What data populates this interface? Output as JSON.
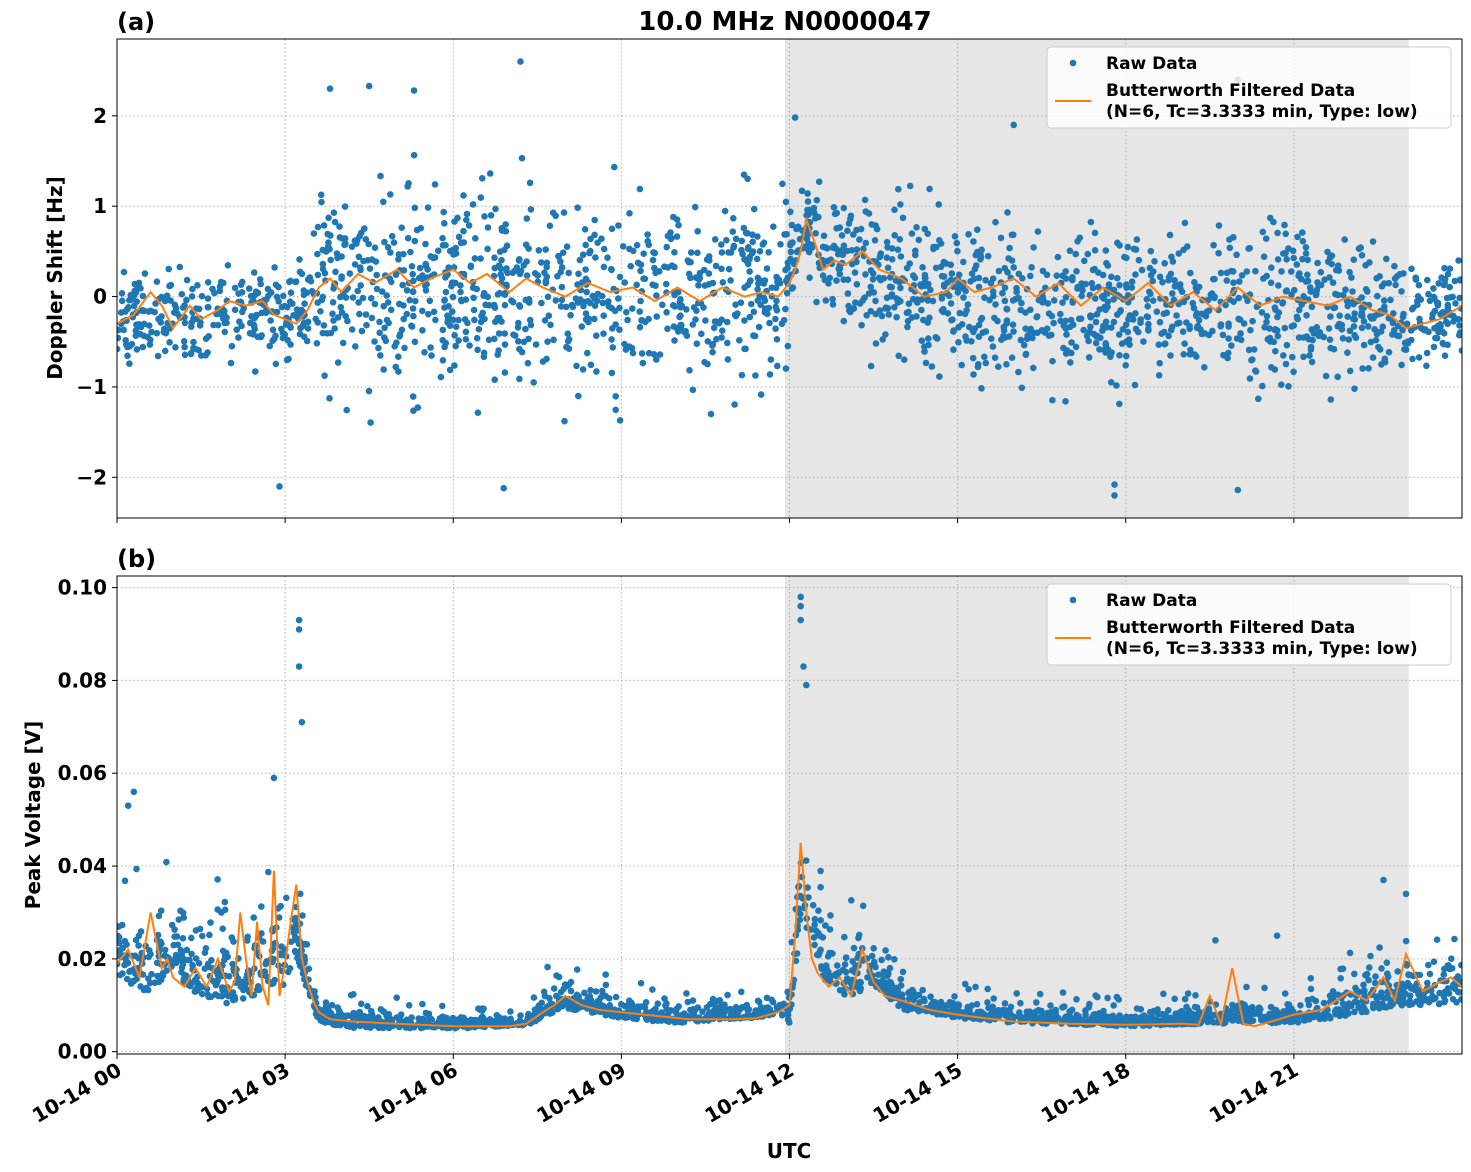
{
  "figure": {
    "title": "10.0 MHz N0000047",
    "xlabel": "UTC"
  },
  "colors": {
    "raw": "#1f77b4",
    "filtered": "#ff7f0e",
    "shade": "#e6e6e6"
  },
  "legend": {
    "raw_label": "Raw Data",
    "filtered_line1": "Butterworth Filtered Data",
    "filtered_line2": "(N=6, Tc=3.3333 min, Type: low)"
  },
  "chart_data": [
    {
      "panel": "(a)",
      "type": "scatter",
      "ylabel": "Doppler Shift [Hz]",
      "xlim": [
        0,
        24
      ],
      "ylim": [
        -2.45,
        2.85
      ],
      "yticks": [
        2,
        1,
        0,
        -1,
        -2
      ],
      "ytick_labels": [
        "2",
        "1",
        "0",
        "−1",
        "−2"
      ],
      "xticks": [
        0,
        3,
        6,
        9,
        12,
        15,
        18,
        21
      ],
      "xtick_labels": [
        "10-14 00",
        "10-14 03",
        "10-14 06",
        "10-14 09",
        "10-14 12",
        "10-14 15",
        "10-14 18",
        "10-14 21"
      ],
      "grid": true,
      "legend_position": "top-right",
      "shaded_interval": [
        11.92,
        23.05
      ],
      "series": [
        {
          "name": "Raw Data",
          "kind": "points",
          "center": [
            [
              0,
              -0.3
            ],
            [
              0.5,
              -0.2
            ],
            [
              1.0,
              -0.25
            ],
            [
              1.5,
              -0.3
            ],
            [
              2.0,
              -0.15
            ],
            [
              2.5,
              -0.1
            ],
            [
              3.0,
              -0.3
            ],
            [
              3.5,
              0.1
            ],
            [
              4,
              0.15
            ],
            [
              6,
              0.1
            ],
            [
              8,
              0.05
            ],
            [
              10,
              0.05
            ],
            [
              11.5,
              0.05
            ],
            [
              12.0,
              0.3
            ],
            [
              12.3,
              0.75
            ],
            [
              12.6,
              0.4
            ],
            [
              13,
              0.3
            ],
            [
              14,
              0.1
            ],
            [
              15,
              0.0
            ],
            [
              17,
              -0.1
            ],
            [
              19,
              -0.1
            ],
            [
              21,
              -0.05
            ],
            [
              22,
              -0.1
            ],
            [
              23,
              -0.2
            ],
            [
              24,
              -0.15
            ]
          ],
          "spread": [
            [
              0,
              0.45
            ],
            [
              3.4,
              0.5
            ],
            [
              3.6,
              1.0
            ],
            [
              7,
              1.0
            ],
            [
              11.8,
              0.9
            ],
            [
              12.2,
              0.6
            ],
            [
              13,
              0.7
            ],
            [
              14.5,
              0.8
            ],
            [
              21,
              0.8
            ],
            [
              23,
              0.55
            ],
            [
              24,
              0.5
            ]
          ],
          "outliers": [
            [
              7.2,
              2.6
            ],
            [
              4.5,
              2.33
            ],
            [
              3.8,
              2.3
            ],
            [
              5.3,
              2.28
            ],
            [
              2.9,
              -2.1
            ],
            [
              6.9,
              -2.12
            ],
            [
              17.8,
              -2.2
            ],
            [
              17.8,
              -2.08
            ],
            [
              20.0,
              -2.14
            ],
            [
              20.0,
              2.4
            ],
            [
              12.1,
              1.98
            ],
            [
              16.0,
              1.9
            ],
            [
              10.6,
              -1.3
            ]
          ]
        },
        {
          "name": "Butterworth Filtered Data",
          "kind": "line",
          "x": [
            0,
            0.3,
            0.6,
            0.8,
            1.0,
            1.3,
            1.5,
            1.8,
            2.0,
            2.3,
            2.6,
            2.8,
            3.0,
            3.2,
            3.4,
            3.6,
            3.8,
            4.0,
            4.3,
            4.6,
            5.0,
            5.3,
            5.6,
            6.0,
            6.3,
            6.6,
            7.0,
            7.3,
            7.6,
            8.0,
            8.4,
            8.8,
            9.2,
            9.6,
            10.0,
            10.4,
            10.8,
            11.2,
            11.5,
            11.8,
            12.0,
            12.1,
            12.2,
            12.3,
            12.45,
            12.6,
            12.8,
            13.0,
            13.3,
            13.6,
            14.0,
            14.4,
            14.8,
            15.0,
            15.3,
            15.6,
            16.0,
            16.4,
            16.8,
            17.2,
            17.6,
            18.0,
            18.4,
            18.8,
            19.2,
            19.6,
            20.0,
            20.4,
            20.8,
            21.2,
            21.6,
            22.0,
            22.4,
            22.7,
            23.0,
            23.3,
            23.6,
            24.0
          ],
          "y": [
            -0.3,
            -0.2,
            0.05,
            -0.1,
            -0.35,
            -0.1,
            -0.25,
            -0.15,
            -0.05,
            -0.1,
            -0.05,
            -0.2,
            -0.25,
            -0.3,
            -0.15,
            0.1,
            0.2,
            0.05,
            0.25,
            0.15,
            0.3,
            0.1,
            0.2,
            0.3,
            0.15,
            0.25,
            0.05,
            0.2,
            0.1,
            0.0,
            0.15,
            0.05,
            0.1,
            -0.05,
            0.1,
            -0.05,
            0.1,
            0.0,
            0.05,
            0.0,
            0.15,
            0.3,
            0.5,
            0.85,
            0.6,
            0.3,
            0.4,
            0.35,
            0.5,
            0.3,
            0.2,
            0.0,
            0.05,
            0.2,
            0.05,
            0.1,
            0.2,
            0.0,
            0.15,
            -0.1,
            0.1,
            -0.05,
            0.15,
            -0.1,
            0.05,
            -0.15,
            0.1,
            -0.1,
            0.0,
            -0.05,
            -0.1,
            0.0,
            -0.15,
            -0.2,
            -0.35,
            -0.3,
            -0.25,
            -0.1
          ]
        }
      ]
    },
    {
      "panel": "(b)",
      "type": "scatter",
      "ylabel": "Peak Voltage [V]",
      "xlim": [
        0,
        24
      ],
      "ylim": [
        -0.0005,
        0.1025
      ],
      "yticks": [
        0.0,
        0.02,
        0.04,
        0.06,
        0.08,
        0.1
      ],
      "ytick_labels": [
        "0.00",
        "0.02",
        "0.04",
        "0.06",
        "0.08",
        "0.10"
      ],
      "xticks": [
        0,
        3,
        6,
        9,
        12,
        15,
        18,
        21
      ],
      "xtick_labels": [
        "10-14 00",
        "10-14 03",
        "10-14 06",
        "10-14 09",
        "10-14 12",
        "10-14 15",
        "10-14 18",
        "10-14 21"
      ],
      "grid": true,
      "legend_position": "top-right",
      "shaded_interval": [
        11.92,
        23.05
      ],
      "series": [
        {
          "name": "Raw Data",
          "kind": "points",
          "center": [
            [
              0,
              0.02
            ],
            [
              0.5,
              0.017
            ],
            [
              1.0,
              0.022
            ],
            [
              1.5,
              0.016
            ],
            [
              2.0,
              0.015
            ],
            [
              2.5,
              0.017
            ],
            [
              2.8,
              0.02
            ],
            [
              3.0,
              0.018
            ],
            [
              3.2,
              0.025
            ],
            [
              3.4,
              0.015
            ],
            [
              3.6,
              0.008
            ],
            [
              4.0,
              0.0065
            ],
            [
              6,
              0.0058
            ],
            [
              7.3,
              0.0062
            ],
            [
              7.6,
              0.009
            ],
            [
              8.0,
              0.011
            ],
            [
              9,
              0.0085
            ],
            [
              10,
              0.0075
            ],
            [
              11.5,
              0.0085
            ],
            [
              12.0,
              0.01
            ],
            [
              12.2,
              0.035
            ],
            [
              12.4,
              0.03
            ],
            [
              12.6,
              0.02
            ],
            [
              13,
              0.015
            ],
            [
              13.5,
              0.017
            ],
            [
              14,
              0.011
            ],
            [
              15,
              0.0085
            ],
            [
              16,
              0.0075
            ],
            [
              18,
              0.0065
            ],
            [
              20,
              0.0075
            ],
            [
              21,
              0.0075
            ],
            [
              22,
              0.01
            ],
            [
              23,
              0.013
            ],
            [
              24,
              0.013
            ]
          ],
          "spread": [
            [
              0,
              0.012
            ],
            [
              3.0,
              0.015
            ],
            [
              3.6,
              0.004
            ],
            [
              7.3,
              0.0015
            ],
            [
              7.6,
              0.005
            ],
            [
              9,
              0.004
            ],
            [
              11.8,
              0.003
            ],
            [
              12.2,
              0.02
            ],
            [
              12.6,
              0.012
            ],
            [
              13.5,
              0.008
            ],
            [
              14.5,
              0.004
            ],
            [
              18,
              0.003
            ],
            [
              21,
              0.004
            ],
            [
              22.5,
              0.008
            ],
            [
              24,
              0.009
            ]
          ],
          "outliers": [
            [
              3.25,
              0.093
            ],
            [
              3.25,
              0.091
            ],
            [
              3.25,
              0.083
            ],
            [
              12.2,
              0.098
            ],
            [
              12.2,
              0.096
            ],
            [
              12.2,
              0.093
            ],
            [
              12.25,
              0.083
            ],
            [
              12.3,
              0.079
            ],
            [
              2.8,
              0.059
            ],
            [
              0.3,
              0.056
            ],
            [
              0.2,
              0.053
            ],
            [
              3.3,
              0.071
            ],
            [
              22.6,
              0.037
            ],
            [
              23.0,
              0.034
            ],
            [
              19.6,
              0.024
            ],
            [
              20.7,
              0.025
            ]
          ]
        },
        {
          "name": "Butterworth Filtered Data",
          "kind": "line",
          "x": [
            0,
            0.2,
            0.4,
            0.6,
            0.8,
            0.9,
            1.0,
            1.2,
            1.4,
            1.6,
            1.8,
            2.0,
            2.1,
            2.2,
            2.3,
            2.4,
            2.5,
            2.6,
            2.7,
            2.8,
            2.9,
            3.0,
            3.1,
            3.2,
            3.3,
            3.4,
            3.5,
            3.6,
            3.8,
            4.2,
            5.0,
            6.0,
            7.0,
            7.3,
            7.6,
            7.8,
            8.0,
            8.3,
            8.6,
            9.0,
            9.4,
            9.8,
            10.2,
            10.6,
            11.0,
            11.4,
            11.8,
            12.0,
            12.1,
            12.2,
            12.3,
            12.4,
            12.5,
            12.7,
            12.9,
            13.1,
            13.3,
            13.5,
            13.7,
            14.0,
            14.5,
            15.0,
            15.5,
            16.0,
            17.0,
            18.0,
            19.0,
            19.3,
            19.5,
            19.7,
            19.9,
            20.1,
            20.3,
            20.6,
            21.0,
            21.5,
            22.0,
            22.3,
            22.6,
            22.8,
            23.0,
            23.3,
            23.6,
            23.8,
            24.0
          ],
          "y": [
            0.019,
            0.022,
            0.016,
            0.03,
            0.018,
            0.02,
            0.016,
            0.014,
            0.018,
            0.014,
            0.02,
            0.013,
            0.015,
            0.03,
            0.02,
            0.012,
            0.028,
            0.014,
            0.01,
            0.039,
            0.012,
            0.019,
            0.028,
            0.036,
            0.02,
            0.015,
            0.011,
            0.0085,
            0.007,
            0.0065,
            0.006,
            0.0055,
            0.0055,
            0.006,
            0.0085,
            0.01,
            0.012,
            0.01,
            0.009,
            0.0085,
            0.008,
            0.0075,
            0.007,
            0.007,
            0.007,
            0.0072,
            0.0085,
            0.01,
            0.025,
            0.045,
            0.03,
            0.02,
            0.017,
            0.014,
            0.016,
            0.012,
            0.022,
            0.015,
            0.012,
            0.011,
            0.009,
            0.008,
            0.0072,
            0.0065,
            0.006,
            0.0058,
            0.006,
            0.0058,
            0.012,
            0.006,
            0.018,
            0.006,
            0.0055,
            0.0065,
            0.008,
            0.009,
            0.013,
            0.011,
            0.016,
            0.011,
            0.021,
            0.013,
            0.015,
            0.016,
            0.014
          ]
        }
      ]
    }
  ]
}
